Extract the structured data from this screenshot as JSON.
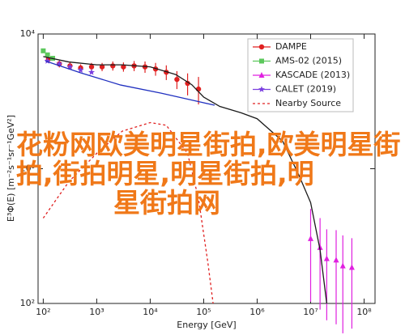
{
  "chart_data": {
    "type": "scatter",
    "xlabel": "Energy [GeV]",
    "ylabel": "E³Φ(E) [m⁻²s⁻¹sr⁻¹GeV²]",
    "xscale": "log",
    "yscale": "log",
    "xlim": [
      80,
      160000000
    ],
    "ylim": [
      100,
      10000
    ],
    "xticks": [
      {
        "value": 100,
        "label": "10²"
      },
      {
        "value": 1000,
        "label": "10³"
      },
      {
        "value": 10000,
        "label": "10⁴"
      },
      {
        "value": 100000,
        "label": "10⁵"
      },
      {
        "value": 1000000,
        "label": "10⁶"
      },
      {
        "value": 10000000,
        "label": "10⁷"
      },
      {
        "value": 100000000,
        "label": "10⁸"
      }
    ],
    "yticks": [
      {
        "value": 100,
        "label": "10²"
      },
      {
        "value": 1000,
        "label": "10³"
      },
      {
        "value": 10000,
        "label": "10⁴"
      }
    ],
    "legend": "upper right",
    "overlay_text": "花粉网欧美明星街拍,欧美明星街拍,街拍明星,明星街拍,明星街拍网",
    "series": [
      {
        "name": "DAMPE",
        "color": "#e02020",
        "marker": "circle",
        "x": [
          125,
          200,
          316,
          500,
          800,
          1260,
          2000,
          3160,
          5000,
          8000,
          12600,
          20000,
          31600,
          50000,
          80000
        ],
        "values": [
          6500,
          6000,
          5800,
          5600,
          5700,
          5700,
          5800,
          5700,
          5800,
          5700,
          5500,
          5200,
          4600,
          4300,
          3900
        ],
        "errors": [
          400,
          350,
          350,
          350,
          400,
          400,
          450,
          450,
          500,
          550,
          600,
          650,
          700,
          800,
          900
        ]
      },
      {
        "name": "AMS-02 (2015)",
        "color": "#5cc85c",
        "marker": "square",
        "x": [
          100,
          120,
          150
        ],
        "values": [
          7500,
          7000,
          6600
        ]
      },
      {
        "name": "KASCADE (2013)",
        "color": "#e020e0",
        "marker": "triangle",
        "x": [
          10000000,
          15000000,
          20000000,
          30000000,
          40000000,
          59000000
        ],
        "values": [
          303,
          260,
          215,
          210,
          190,
          185
        ],
        "errors": [
          200,
          170,
          140,
          140,
          130,
          120
        ]
      },
      {
        "name": "CALET (2019)",
        "color": "#7a3ee0",
        "marker": "star",
        "x": [
          120,
          200,
          316,
          500,
          800
        ],
        "values": [
          6300,
          6000,
          5700,
          5400,
          5200
        ]
      },
      {
        "name": "Nearby Source",
        "color": "#e02020",
        "style": "dashed",
        "x": [
          100,
          300,
          1000,
          3000,
          10000,
          20000,
          50000,
          80000,
          120000,
          150000
        ],
        "values": [
          430,
          800,
          1300,
          1900,
          2200,
          2100,
          1300,
          600,
          200,
          100
        ]
      },
      {
        "color": "#1a1a1a",
        "style": "solid",
        "x": [
          100,
          300,
          1000,
          3000,
          10000,
          30000,
          60000,
          100000,
          200000,
          500000,
          1000000,
          3000000,
          6000000,
          10000000,
          15000000,
          20000000
        ],
        "values": [
          6800,
          6200,
          5900,
          5900,
          5700,
          5000,
          4200,
          3400,
          2900,
          2600,
          2350,
          1600,
          900,
          560,
          250,
          100
        ]
      },
      {
        "color": "#2030c0",
        "style": "solid",
        "x": [
          110,
          500,
          2800,
          16000,
          160000
        ],
        "values": [
          6300,
          5150,
          4180,
          3640,
          2960
        ]
      }
    ]
  }
}
